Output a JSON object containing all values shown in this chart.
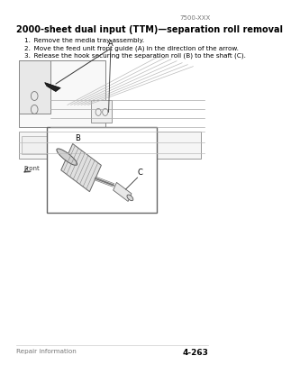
{
  "page_id": "7500-XXX",
  "title": "2000-sheet dual input (TTM)—separation roll removal",
  "steps": [
    "1. Remove the media tray assembly.",
    "2. Move the feed unit front guide (A) in the direction of the arrow.",
    "3. Release the hook securing the separation roll (B) to the shaft (C)."
  ],
  "footer_left": "Repair information",
  "footer_right": "4-263",
  "bg_color": "#ffffff",
  "text_color": "#000000",
  "light_gray": "#cccccc",
  "mid_gray": "#999999",
  "dark_gray": "#555555",
  "label_A": "A",
  "label_B": "B",
  "label_C": "C",
  "label_Front": "Front",
  "title_fontsize": 7.0,
  "step_fontsize": 5.2,
  "label_fontsize": 6.0,
  "footer_fontsize": 5.2
}
